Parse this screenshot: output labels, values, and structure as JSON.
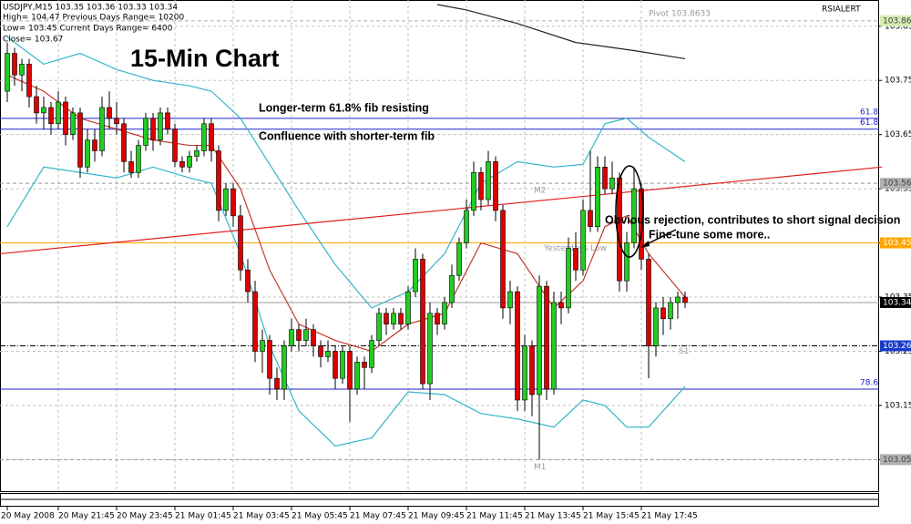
{
  "chart_data": {
    "type": "candlestick",
    "header": [
      "USDJPY,M15  103.35 103.36 103.33 103.34",
      "High= 104.47   Previous Days Range= 10200",
      "Low= 103.45   Current Days Range= 6400",
      "Close= 103.67"
    ],
    "title": "15-Min Chart",
    "indicator": "RSIALERT",
    "annotations": [
      "Longer-term 61.8% fib resisting",
      "Confluence with shorter-term fib",
      "Obvious rejection, contributes to short signal decision",
      "Fine-tune some more.."
    ],
    "categories": [
      "20 May 2008",
      null,
      null,
      null,
      null,
      null,
      null,
      "20 May 21:45",
      null,
      null,
      null,
      null,
      null,
      null,
      null,
      "20 May 23:45",
      null,
      null,
      null,
      null,
      null,
      null,
      null,
      "21 May 01:45",
      null,
      null,
      null,
      null,
      null,
      null,
      null,
      "21 May 03:45",
      null,
      null,
      null,
      null,
      null,
      null,
      null,
      "21 May 05:45",
      null,
      null,
      null,
      null,
      null,
      null,
      null,
      "21 May 07:45",
      null,
      null,
      null,
      null,
      null,
      null,
      null,
      "21 May 09:45",
      null,
      null,
      null,
      null,
      null,
      null,
      null,
      "21 May 11:45",
      null,
      null,
      null,
      null,
      null,
      null,
      null,
      "21 May 13:45",
      null,
      null,
      null,
      null,
      null,
      null,
      null,
      "21 May 15:45",
      null,
      null,
      null,
      null,
      null,
      null,
      null,
      "21 May 17:45",
      null,
      null,
      null,
      null,
      null,
      null
    ],
    "open": [
      103.73,
      103.8,
      103.76,
      103.78,
      103.72,
      103.69,
      103.7,
      103.67,
      103.71,
      103.65,
      103.69,
      103.59,
      103.64,
      103.62,
      103.7,
      103.68,
      103.67,
      103.6,
      103.58,
      103.63,
      103.68,
      103.64,
      103.69,
      103.66,
      103.6,
      103.59,
      103.61,
      103.62,
      103.67,
      103.62,
      103.51,
      103.55,
      103.5,
      103.4,
      103.36,
      103.25,
      103.27,
      103.2,
      103.18,
      103.26,
      103.29,
      103.27,
      103.29,
      103.26,
      103.24,
      103.25,
      103.2,
      103.25,
      103.18,
      103.23,
      103.22,
      103.27,
      103.32,
      103.3,
      103.32,
      103.3,
      103.36,
      103.42,
      103.19,
      103.32,
      103.3,
      103.34,
      103.39,
      103.45,
      103.51,
      103.58,
      103.53,
      103.6,
      103.51,
      103.33,
      103.36,
      103.16,
      103.26,
      103.17,
      103.37,
      103.18,
      103.34,
      103.33,
      103.44,
      103.4,
      103.51,
      103.48,
      103.59,
      103.55,
      103.57,
      103.38,
      103.45,
      103.55,
      103.42,
      103.26,
      103.33,
      103.31,
      103.34,
      103.35
    ],
    "high": [
      103.82,
      103.81,
      103.79,
      103.79,
      103.74,
      103.72,
      103.71,
      103.73,
      103.72,
      103.7,
      103.7,
      103.66,
      103.66,
      103.72,
      103.73,
      103.71,
      103.68,
      103.62,
      103.64,
      103.69,
      103.69,
      103.7,
      103.7,
      103.67,
      103.61,
      103.62,
      103.63,
      103.68,
      103.68,
      103.63,
      103.56,
      103.56,
      103.52,
      103.42,
      103.38,
      103.29,
      103.28,
      103.22,
      103.27,
      103.31,
      103.3,
      103.31,
      103.3,
      103.27,
      103.27,
      103.26,
      103.26,
      103.26,
      103.24,
      103.24,
      103.28,
      103.33,
      103.33,
      103.33,
      103.33,
      103.37,
      103.44,
      103.43,
      103.34,
      103.33,
      103.35,
      103.41,
      103.46,
      103.53,
      103.6,
      103.59,
      103.62,
      103.61,
      103.52,
      103.38,
      103.37,
      103.28,
      103.27,
      103.39,
      103.38,
      103.36,
      103.36,
      103.46,
      103.47,
      103.53,
      103.62,
      103.61,
      103.61,
      103.6,
      103.58,
      103.47,
      103.59,
      103.56,
      103.43,
      103.34,
      103.35,
      103.35,
      103.36,
      103.36
    ],
    "low": [
      103.71,
      103.74,
      103.73,
      103.7,
      103.67,
      103.66,
      103.65,
      103.66,
      103.63,
      103.64,
      103.57,
      103.58,
      103.6,
      103.61,
      103.66,
      103.65,
      103.58,
      103.57,
      103.57,
      103.62,
      103.62,
      103.63,
      103.65,
      103.59,
      103.58,
      103.58,
      103.6,
      103.61,
      103.6,
      103.49,
      103.5,
      103.48,
      103.38,
      103.34,
      103.23,
      103.21,
      103.17,
      103.16,
      103.16,
      103.25,
      103.25,
      103.26,
      103.24,
      103.22,
      103.23,
      103.18,
      103.19,
      103.12,
      103.17,
      103.18,
      103.21,
      103.26,
      103.28,
      103.29,
      103.29,
      103.29,
      103.35,
      103.18,
      103.16,
      103.28,
      103.29,
      103.33,
      103.38,
      103.44,
      103.5,
      103.51,
      103.52,
      103.49,
      103.31,
      103.3,
      103.14,
      103.14,
      103.13,
      103.05,
      103.16,
      103.17,
      103.3,
      103.32,
      103.38,
      103.39,
      103.47,
      103.47,
      103.54,
      103.54,
      103.36,
      103.36,
      103.44,
      103.4,
      103.2,
      103.24,
      103.28,
      103.29,
      103.31,
      103.33
    ],
    "close": [
      103.8,
      103.76,
      103.78,
      103.72,
      103.69,
      103.7,
      103.67,
      103.71,
      103.65,
      103.69,
      103.59,
      103.64,
      103.62,
      103.7,
      103.68,
      103.67,
      103.6,
      103.58,
      103.63,
      103.68,
      103.64,
      103.69,
      103.66,
      103.6,
      103.59,
      103.61,
      103.62,
      103.67,
      103.62,
      103.51,
      103.55,
      103.5,
      103.4,
      103.36,
      103.25,
      103.27,
      103.2,
      103.18,
      103.26,
      103.29,
      103.27,
      103.29,
      103.26,
      103.24,
      103.25,
      103.2,
      103.25,
      103.18,
      103.23,
      103.22,
      103.27,
      103.32,
      103.3,
      103.32,
      103.3,
      103.36,
      103.42,
      103.19,
      103.32,
      103.3,
      103.34,
      103.39,
      103.45,
      103.51,
      103.58,
      103.53,
      103.6,
      103.51,
      103.33,
      103.36,
      103.16,
      103.26,
      103.17,
      103.37,
      103.18,
      103.34,
      103.33,
      103.44,
      103.4,
      103.51,
      103.48,
      103.59,
      103.55,
      103.57,
      103.38,
      103.45,
      103.55,
      103.42,
      103.26,
      103.33,
      103.31,
      103.34,
      103.35,
      103.34
    ],
    "up_color": "#22cc22",
    "down_color": "#dd0000",
    "wick_color": "#000000",
    "overlays": [
      {
        "color": "#33b5c8",
        "x": [
          0,
          5,
          10,
          15,
          20,
          25,
          28,
          32,
          36,
          40,
          45,
          50,
          55,
          60,
          65,
          70,
          75,
          79,
          82,
          85,
          88,
          93
        ],
        "values": [
          103.83,
          103.78,
          103.8,
          103.77,
          103.75,
          103.74,
          103.73,
          103.68,
          103.595,
          103.51,
          103.41,
          103.33,
          103.36,
          103.43,
          103.56,
          103.6,
          103.59,
          103.595,
          103.67,
          103.68,
          103.645,
          103.6
        ]
      },
      {
        "color": "#33b5c8",
        "x": [
          0,
          5,
          10,
          15,
          20,
          25,
          28,
          32,
          36,
          40,
          45,
          50,
          55,
          60,
          65,
          70,
          75,
          79,
          82,
          85,
          88,
          93
        ],
        "values": [
          103.48,
          103.59,
          103.58,
          103.57,
          103.59,
          103.57,
          103.56,
          103.43,
          103.26,
          103.14,
          103.075,
          103.09,
          103.175,
          103.17,
          103.135,
          103.125,
          103.11,
          103.16,
          103.15,
          103.11,
          103.11,
          103.185
        ]
      },
      {
        "color": "#c0392b",
        "x": [
          0,
          5,
          10,
          15,
          20,
          25,
          28,
          32,
          36,
          40,
          45,
          50,
          55,
          60,
          65,
          70,
          75,
          79,
          82,
          85,
          88,
          93
        ],
        "values": [
          103.76,
          103.73,
          103.68,
          103.66,
          103.64,
          103.63,
          103.63,
          103.55,
          103.4,
          103.3,
          103.27,
          103.25,
          103.3,
          103.32,
          103.45,
          103.43,
          103.33,
          103.38,
          103.48,
          103.5,
          103.43,
          103.35
        ]
      },
      {
        "color": "#222222",
        "x": [
          59,
          63,
          70,
          78,
          86,
          93
        ],
        "values": [
          103.89,
          103.88,
          103.855,
          103.82,
          103.805,
          103.79
        ]
      },
      {
        "color": "#e02020",
        "x": [
          -1,
          120
        ],
        "values": [
          103.43,
          103.59
        ]
      }
    ],
    "levels": [
      {
        "value": 103.86,
        "label": "Pivot 103.8633",
        "color": "#aaaaaa",
        "style": "dashed",
        "box": true,
        "box_color": "#d4ecb0"
      },
      {
        "value": 103.68,
        "label": "61.8",
        "color": "#2020d0",
        "style": "solid"
      },
      {
        "value": 103.66,
        "label": "61.8",
        "color": "#2020d0",
        "style": "solid"
      },
      {
        "value": 103.56,
        "label": "M2",
        "color": "#999999",
        "style": "dashed",
        "box": true,
        "box_color": "#b0b0b0"
      },
      {
        "value": 103.45,
        "label": "Yesterdays Low",
        "color": "#ffa500",
        "style": "solid",
        "box": true,
        "box_color": "#ffa500"
      },
      {
        "value": 103.34,
        "color": "#999999",
        "style": "solid",
        "box": true,
        "box_color": "#000000"
      },
      {
        "value": 103.26,
        "label": "S1",
        "color": "#000000",
        "style": "dashdot",
        "box": true,
        "box_color": "#1a3cc8"
      },
      {
        "value": 103.18,
        "label": "78.6",
        "color": "#2020d0",
        "style": "solid"
      },
      {
        "value": 103.05,
        "label": "M1",
        "color": "#999999",
        "style": "dashed",
        "box": true,
        "box_color": "#b0b0b0"
      }
    ],
    "ylim": [
      102.99,
      103.89
    ],
    "yticks": [
      103.85,
      103.75,
      103.65,
      103.55,
      103.45,
      103.35,
      103.25,
      103.15,
      103.05
    ],
    "grid": true
  }
}
